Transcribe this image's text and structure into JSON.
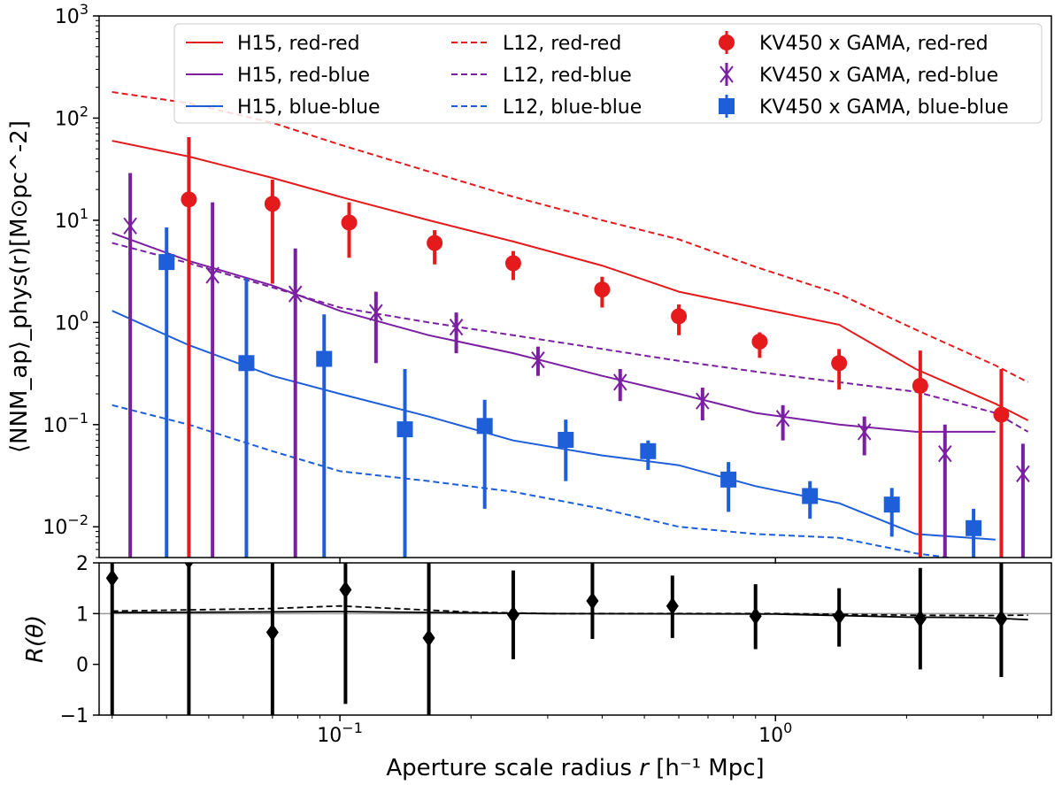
{
  "chart_data": [
    {
      "type": "scatter",
      "panel": "main",
      "xscale": "log",
      "yscale": "log",
      "xlim": [
        0.028,
        4.3
      ],
      "ylim": [
        0.005,
        1000
      ],
      "ylabel": "⟨NNM_ap⟩_phys(r)[M⊙pc^-2]",
      "y_ticks": [
        {
          "value": 0.01,
          "label": "10",
          "exp": "−2"
        },
        {
          "value": 0.1,
          "label": "10",
          "exp": "−1"
        },
        {
          "value": 1,
          "label": "10",
          "exp": "0"
        },
        {
          "value": 10,
          "label": "10",
          "exp": "1"
        },
        {
          "value": 100,
          "label": "10",
          "exp": "2"
        },
        {
          "value": 1000,
          "label": "10",
          "exp": "3"
        }
      ],
      "legend_position": "top",
      "lines": [
        {
          "name": "H15, red-red",
          "color": "#e41a1c",
          "dash": "solid",
          "x": [
            0.03,
            0.045,
            0.07,
            0.1,
            0.16,
            0.25,
            0.4,
            0.6,
            0.9,
            1.4,
            2.1,
            3.2,
            3.8
          ],
          "y": [
            60,
            42,
            26,
            17,
            10,
            6.2,
            3.6,
            2.0,
            1.4,
            0.95,
            0.35,
            0.16,
            0.11
          ]
        },
        {
          "name": "H15, red-blue",
          "color": "#7b1fa2",
          "dash": "solid",
          "x": [
            0.03,
            0.045,
            0.07,
            0.1,
            0.16,
            0.25,
            0.4,
            0.6,
            0.9,
            1.4,
            2.1,
            3.2
          ],
          "y": [
            7.5,
            4.0,
            2.3,
            1.3,
            0.75,
            0.5,
            0.3,
            0.2,
            0.13,
            0.1,
            0.085,
            0.085
          ]
        },
        {
          "name": "H15, blue-blue",
          "color": "#1e5fd9",
          "dash": "solid",
          "x": [
            0.03,
            0.045,
            0.07,
            0.1,
            0.16,
            0.25,
            0.4,
            0.6,
            0.9,
            1.4,
            2.1,
            3.2
          ],
          "y": [
            1.3,
            0.6,
            0.3,
            0.2,
            0.12,
            0.07,
            0.05,
            0.04,
            0.025,
            0.017,
            0.0085,
            0.0075
          ]
        },
        {
          "name": "L12, red-red",
          "color": "#e41a1c",
          "dash": "dashed",
          "x": [
            0.03,
            0.045,
            0.07,
            0.1,
            0.16,
            0.25,
            0.4,
            0.6,
            0.9,
            1.4,
            2.1,
            3.2,
            3.8
          ],
          "y": [
            180,
            140,
            90,
            55,
            30,
            17,
            10,
            6.5,
            3.5,
            1.9,
            0.85,
            0.38,
            0.26
          ]
        },
        {
          "name": "L12, red-blue",
          "color": "#7b1fa2",
          "dash": "dashed",
          "x": [
            0.03,
            0.045,
            0.07,
            0.1,
            0.16,
            0.25,
            0.4,
            0.6,
            0.9,
            1.4,
            2.1,
            3.2,
            3.8
          ],
          "y": [
            6.0,
            3.8,
            2.2,
            1.4,
            1.0,
            0.75,
            0.55,
            0.42,
            0.33,
            0.26,
            0.21,
            0.13,
            0.085
          ]
        },
        {
          "name": "L12, blue-blue",
          "color": "#1e5fd9",
          "dash": "dashed",
          "x": [
            0.03,
            0.045,
            0.07,
            0.1,
            0.16,
            0.25,
            0.4,
            0.6,
            0.9,
            1.4,
            2.1,
            3.0
          ],
          "y": [
            0.155,
            0.1,
            0.055,
            0.035,
            0.028,
            0.022,
            0.015,
            0.01,
            0.0085,
            0.0078,
            0.0055,
            0.0045
          ]
        }
      ],
      "points": [
        {
          "name": "KV450 x GAMA, red-red",
          "color": "#e41a1c",
          "marker": "circle",
          "x": [
            0.045,
            0.07,
            0.105,
            0.165,
            0.25,
            0.4,
            0.6,
            0.92,
            1.4,
            2.15,
            3.3
          ],
          "y": [
            16,
            14.5,
            9.5,
            6.0,
            3.8,
            2.1,
            1.15,
            0.65,
            0.4,
            0.24,
            0.125
          ],
          "lo": [
            0.003,
            2.4,
            4.3,
            3.7,
            2.6,
            1.4,
            0.75,
            0.45,
            0.22,
            0.003,
            0.003
          ],
          "hi": [
            65,
            25,
            15,
            8.0,
            5.0,
            2.8,
            1.5,
            0.8,
            0.55,
            0.53,
            0.35
          ]
        },
        {
          "name": "KV450 x GAMA, red-blue",
          "color": "#7b1fa2",
          "marker": "x",
          "x": [
            0.033,
            0.051,
            0.079,
            0.121,
            0.185,
            0.285,
            0.44,
            0.68,
            1.04,
            1.6,
            2.45,
            3.7
          ],
          "y": [
            8.8,
            2.9,
            1.9,
            1.25,
            0.9,
            0.43,
            0.26,
            0.17,
            0.115,
            0.085,
            0.052,
            0.033
          ],
          "lo": [
            0.003,
            0.003,
            0.003,
            0.4,
            0.5,
            0.3,
            0.17,
            0.11,
            0.07,
            0.05,
            0.003,
            0.003
          ],
          "hi": [
            29,
            15,
            5.3,
            2.0,
            1.25,
            0.58,
            0.35,
            0.23,
            0.155,
            0.12,
            0.1,
            0.065
          ]
        },
        {
          "name": "KV450 x GAMA, blue-blue",
          "color": "#1e5fd9",
          "marker": "square",
          "x": [
            0.04,
            0.061,
            0.092,
            0.141,
            0.215,
            0.33,
            0.51,
            0.78,
            1.2,
            1.85,
            2.85
          ],
          "y": [
            3.9,
            0.4,
            0.44,
            0.09,
            0.097,
            0.071,
            0.055,
            0.029,
            0.02,
            0.0165,
            0.0097
          ],
          "lo": [
            0.003,
            0.003,
            0.003,
            0.003,
            0.015,
            0.028,
            0.036,
            0.014,
            0.012,
            0.008,
            0.003
          ],
          "hi": [
            8.5,
            2.7,
            1.2,
            0.35,
            0.175,
            0.112,
            0.07,
            0.043,
            0.028,
            0.024,
            0.015
          ]
        }
      ]
    },
    {
      "type": "scatter",
      "panel": "ratio",
      "xscale": "log",
      "xlim": [
        0.028,
        4.3
      ],
      "ylim": [
        -1,
        2
      ],
      "ylabel": "R(θ)",
      "xlabel_prefix": "Aperture scale radius ",
      "xlabel_var": "r",
      "xlabel_unit": " [h⁻¹ Mpc]",
      "y_ticks": [
        {
          "value": -1,
          "label": "−1"
        },
        {
          "value": 0,
          "label": "0"
        },
        {
          "value": 1,
          "label": "1"
        },
        {
          "value": 2,
          "label": "2"
        }
      ],
      "x_ticks": [
        {
          "value": 0.1,
          "label": "10",
          "exp": "−1"
        },
        {
          "value": 1,
          "label": "10",
          "exp": "0"
        }
      ],
      "reference_line": 1,
      "solid_line": {
        "x": [
          0.03,
          0.1,
          0.3,
          1.0,
          2.0,
          3.0,
          3.8
        ],
        "y": [
          1.02,
          1.04,
          1.0,
          0.99,
          0.93,
          0.92,
          0.88
        ]
      },
      "dashed_line": {
        "x": [
          0.03,
          0.07,
          0.1,
          0.2,
          0.3,
          1.0,
          2.0,
          3.0,
          3.8
        ],
        "y": [
          1.05,
          1.1,
          1.15,
          1.03,
          1.0,
          1.0,
          0.97,
          0.96,
          0.97
        ]
      },
      "points": {
        "name": "ratio",
        "color": "#000000",
        "marker": "diamond",
        "x": [
          0.03,
          0.045,
          0.07,
          0.103,
          0.16,
          0.25,
          0.38,
          0.58,
          0.9,
          1.4,
          2.15,
          3.3
        ],
        "y": [
          1.7,
          2.05,
          0.63,
          1.47,
          0.52,
          0.98,
          1.25,
          1.15,
          0.95,
          0.95,
          0.9,
          0.9
        ],
        "lo": [
          -1.0,
          -1.0,
          -1.0,
          -0.78,
          -1.0,
          0.1,
          0.5,
          0.52,
          0.3,
          0.35,
          -0.1,
          -0.25
        ],
        "hi": [
          2.0,
          2.0,
          2.0,
          2.0,
          2.0,
          1.85,
          2.0,
          1.75,
          1.58,
          1.5,
          1.9,
          2.0
        ]
      }
    }
  ]
}
